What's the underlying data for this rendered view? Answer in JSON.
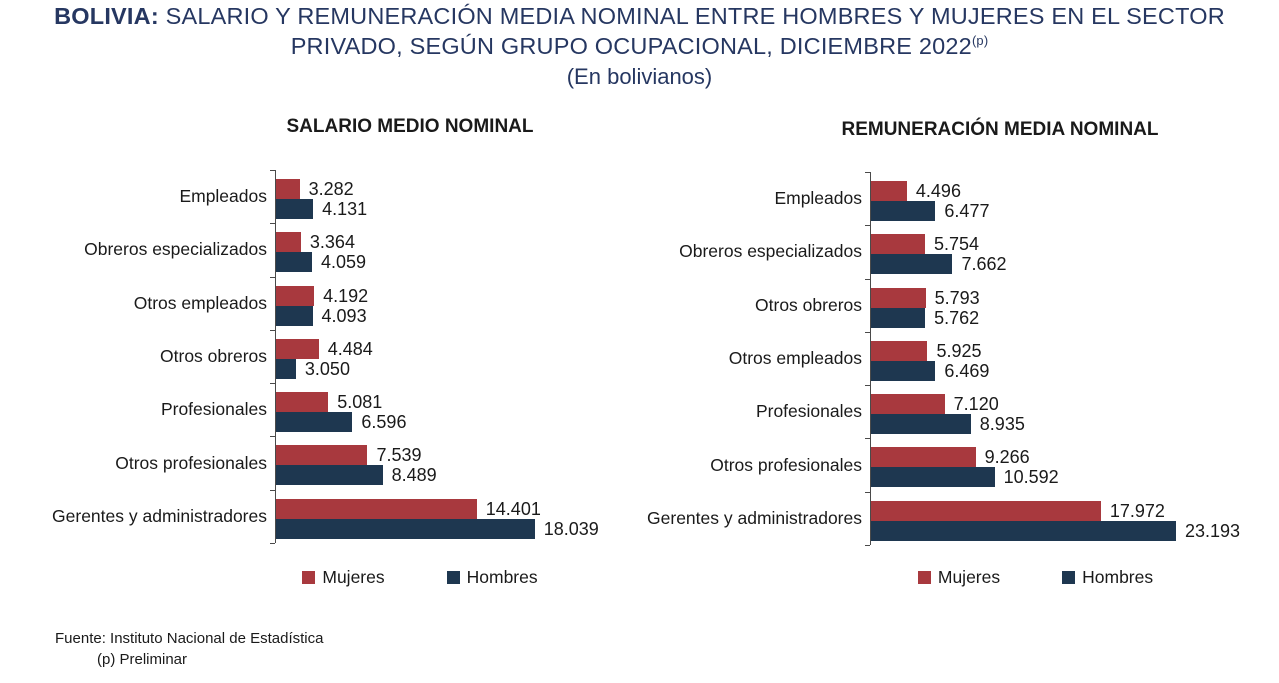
{
  "header": {
    "title_bold": "BOLIVIA:",
    "title_line1_rest": " SALARIO Y REMUNERACIÓN MEDIA NOMINAL ENTRE HOMBRES Y MUJERES EN EL SECTOR",
    "title_line2": "PRIVADO, SEGÚN GRUPO OCUPACIONAL, DICIEMBRE 2022",
    "title_superscript": "(p)",
    "subtitle": "(En bolivianos)"
  },
  "legend": {
    "mujeres_label": "Mujeres",
    "hombres_label": "Hombres"
  },
  "colors": {
    "mujeres": "#A8393E",
    "hombres": "#1E3750",
    "title_text": "#263761",
    "axis_line": "#4A4A4A",
    "text": "#1A1A1A"
  },
  "footer": {
    "source": "Fuente: Instituto Nacional de Estadística",
    "note": "(p) Preliminar"
  },
  "chart_data": [
    {
      "type": "bar",
      "orientation": "horizontal",
      "title": "SALARIO MEDIO NOMINAL",
      "unit": "bolivianos",
      "categories": [
        "Empleados",
        "Obreros especializados",
        "Otros empleados",
        "Otros obreros",
        "Profesionales",
        "Otros profesionales",
        "Gerentes y administradores"
      ],
      "series": [
        {
          "name": "Mujeres",
          "color": "#A8393E",
          "values": [
            3282,
            3364,
            4192,
            4484,
            5081,
            7539,
            14401
          ],
          "labels": [
            "3.282",
            "3.364",
            "4.192",
            "4.484",
            "5.081",
            "7.539",
            "14.401"
          ]
        },
        {
          "name": "Hombres",
          "color": "#1E3750",
          "values": [
            4131,
            4059,
            4093,
            3050,
            6596,
            8489,
            18039
          ],
          "labels": [
            "4.131",
            "4.059",
            "4.093",
            "3.050",
            "6.596",
            "8.489",
            "18.039"
          ]
        }
      ],
      "axis_min": 1800,
      "axis_max": 20000,
      "grid": false,
      "legend_position": "bottom",
      "data_labels": true
    },
    {
      "type": "bar",
      "orientation": "horizontal",
      "title": "REMUNERACIÓN MEDIA NOMINAL",
      "unit": "bolivianos",
      "categories": [
        "Empleados",
        "Obreros especializados",
        "Otros obreros",
        "Otros empleados",
        "Profesionales",
        "Otros profesionales",
        "Gerentes y administradores"
      ],
      "series": [
        {
          "name": "Mujeres",
          "color": "#A8393E",
          "values": [
            4496,
            5754,
            5793,
            5925,
            7120,
            9266,
            17972
          ],
          "labels": [
            "4.496",
            "5.754",
            "5.793",
            "5.925",
            "7.120",
            "9.266",
            "17.972"
          ]
        },
        {
          "name": "Hombres",
          "color": "#1E3750",
          "values": [
            6477,
            7662,
            5762,
            6469,
            8935,
            10592,
            23193
          ],
          "labels": [
            "6.477",
            "7.662",
            "5.762",
            "6.469",
            "8.935",
            "10.592",
            "23.193"
          ]
        }
      ],
      "axis_min": 2000,
      "axis_max": 25000,
      "grid": false,
      "legend_position": "bottom",
      "data_labels": true
    }
  ]
}
